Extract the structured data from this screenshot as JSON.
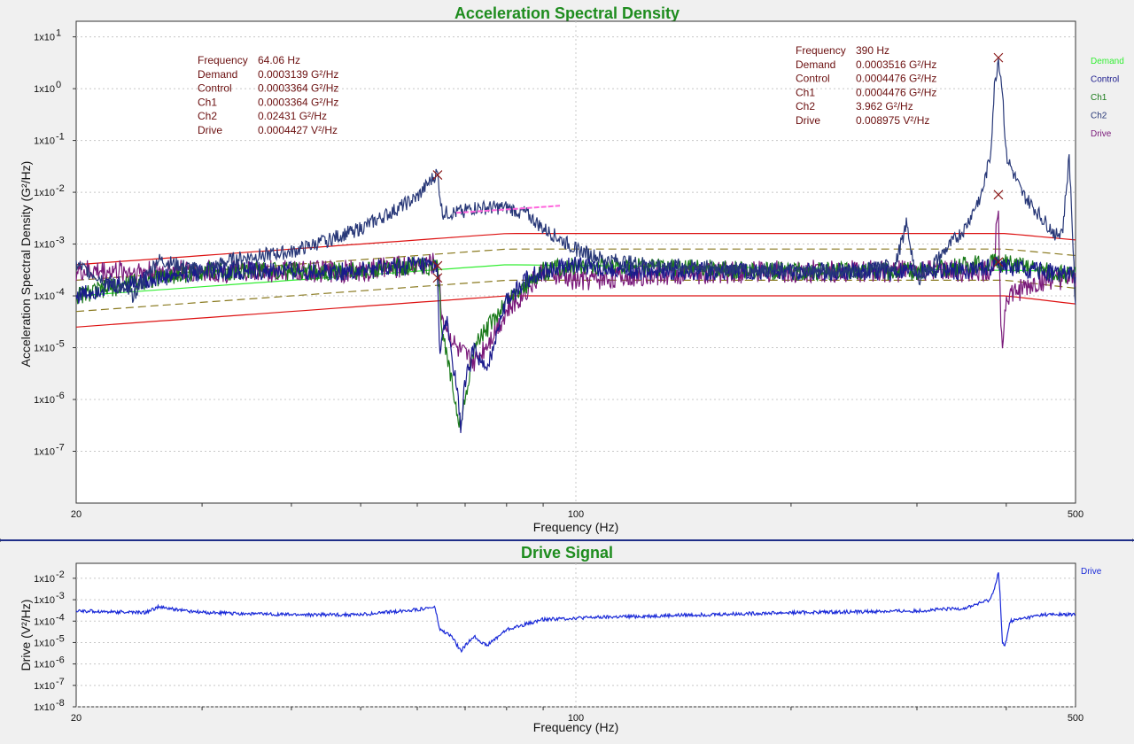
{
  "colors": {
    "demand": "#33ee33",
    "control": "#1a1a8c",
    "ch1": "#1a7a1a",
    "ch2": "#283878",
    "drive": "#7a1a7a",
    "abort": "#dd1111",
    "alarm": "#8a7a20",
    "reference": "#ff66dd",
    "drive_signal": "#1a2ad8",
    "title": "#1e8c1e",
    "cursor_text": "#6b0f0f",
    "separator": "#1f2e88"
  },
  "asd_panel": {
    "title": "Acceleration Spectral Density",
    "xlabel": "Frequency (Hz)",
    "ylabel": "Acceleration Spectral Density (G²/Hz)",
    "x_ticks": [
      "20",
      "100",
      "500"
    ],
    "y_ticks": [
      {
        "exp": 1,
        "label": "1x10"
      },
      {
        "exp": 0,
        "label": "1x10"
      },
      {
        "exp": -1,
        "label": "1x10"
      },
      {
        "exp": -2,
        "label": "1x10"
      },
      {
        "exp": -3,
        "label": "1x10"
      },
      {
        "exp": -4,
        "label": "1x10"
      },
      {
        "exp": -5,
        "label": "1x10"
      },
      {
        "exp": -6,
        "label": "1x10"
      },
      {
        "exp": -7,
        "label": "1x10"
      }
    ],
    "legend": [
      "Demand",
      "Control",
      "Ch1",
      "Ch2",
      "Drive"
    ],
    "cursor1": {
      "rows": [
        {
          "name": "Frequency",
          "value": "64.06 Hz"
        },
        {
          "name": "Demand",
          "value": "0.0003139 G²/Hz"
        },
        {
          "name": "Control",
          "value": "0.0003364 G²/Hz"
        },
        {
          "name": "Ch1",
          "value": "0.0003364 G²/Hz"
        },
        {
          "name": "Ch2",
          "value": "0.02431 G²/Hz"
        },
        {
          "name": "Drive",
          "value": "0.0004427 V²/Hz"
        }
      ]
    },
    "cursor2": {
      "rows": [
        {
          "name": "Frequency",
          "value": "390 Hz"
        },
        {
          "name": "Demand",
          "value": "0.0003516 G²/Hz"
        },
        {
          "name": "Control",
          "value": "0.0004476 G²/Hz"
        },
        {
          "name": "Ch1",
          "value": "0.0004476 G²/Hz"
        },
        {
          "name": "Ch2",
          "value": "3.962 G²/Hz"
        },
        {
          "name": "Drive",
          "value": "0.008975 V²/Hz"
        }
      ]
    }
  },
  "drive_panel": {
    "title": "Drive Signal",
    "xlabel": "Frequency (Hz)",
    "ylabel": "Drive (V²/Hz)",
    "x_ticks": [
      "20",
      "100",
      "500"
    ],
    "y_ticks": [
      {
        "exp": -2,
        "label": "1x10"
      },
      {
        "exp": -3,
        "label": "1x10"
      },
      {
        "exp": -4,
        "label": "1x10"
      },
      {
        "exp": -5,
        "label": "1x10"
      },
      {
        "exp": -6,
        "label": "1x10"
      },
      {
        "exp": -7,
        "label": "1x10"
      },
      {
        "exp": -8,
        "label": "1x10"
      }
    ],
    "legend": [
      "Drive"
    ]
  },
  "chart_data": [
    {
      "type": "line",
      "title": "Acceleration Spectral Density",
      "xlabel": "Frequency (Hz)",
      "ylabel": "Acceleration Spectral Density (G²/Hz)",
      "xscale": "log",
      "yscale": "log",
      "xlim": [
        20,
        500
      ],
      "ylim": [
        1e-08,
        20
      ],
      "grid": true,
      "legend_position": "right",
      "cursors": [
        64.06,
        390
      ],
      "series": [
        {
          "name": "Demand",
          "points": [
            [
              20,
              0.0001
            ],
            [
              80,
              0.0004
            ],
            [
              500,
              0.0003
            ]
          ]
        },
        {
          "name": "Control",
          "points": [
            [
              20,
              0.0001
            ],
            [
              22,
              0.00015
            ],
            [
              25,
              0.0002
            ],
            [
              30,
              0.0003
            ],
            [
              35,
              0.0003
            ],
            [
              40,
              0.0003
            ],
            [
              45,
              0.0003
            ],
            [
              50,
              0.0003
            ],
            [
              55,
              0.00035
            ],
            [
              60,
              0.0004
            ],
            [
              64,
              0.00034
            ],
            [
              64.5,
              1e-05
            ],
            [
              66,
              3e-05
            ],
            [
              68,
              2e-06
            ],
            [
              69,
              3e-07
            ],
            [
              70,
              2e-06
            ],
            [
              72,
              1e-05
            ],
            [
              75,
              3e-06
            ],
            [
              78,
              3e-05
            ],
            [
              80,
              8e-05
            ],
            [
              85,
              0.0002
            ],
            [
              90,
              0.0003
            ],
            [
              100,
              0.0004
            ],
            [
              120,
              0.0003
            ],
            [
              150,
              0.0003
            ],
            [
              200,
              0.0003
            ],
            [
              250,
              0.0003
            ],
            [
              300,
              0.0003
            ],
            [
              350,
              0.0003
            ],
            [
              380,
              0.00035
            ],
            [
              390,
              0.00045
            ],
            [
              400,
              0.00035
            ],
            [
              450,
              0.0003
            ],
            [
              500,
              0.00025
            ]
          ]
        },
        {
          "name": "Ch1",
          "points": [
            [
              20,
              0.0001
            ],
            [
              25,
              0.0002
            ],
            [
              30,
              0.0003
            ],
            [
              40,
              0.0003
            ],
            [
              50,
              0.0003
            ],
            [
              60,
              0.0004
            ],
            [
              64,
              0.00034
            ],
            [
              65,
              2e-05
            ],
            [
              69,
              3e-07
            ],
            [
              72,
              1e-05
            ],
            [
              80,
              8e-05
            ],
            [
              90,
              0.0003
            ],
            [
              100,
              0.0004
            ],
            [
              200,
              0.0003
            ],
            [
              300,
              0.0003
            ],
            [
              390,
              0.00045
            ],
            [
              450,
              0.0003
            ],
            [
              500,
              0.00025
            ]
          ]
        },
        {
          "name": "Ch2",
          "points": [
            [
              20,
              0.0004
            ],
            [
              22,
              0.0002
            ],
            [
              24,
              0.0001
            ],
            [
              26,
              0.0005
            ],
            [
              30,
              0.0003
            ],
            [
              33,
              0.0005
            ],
            [
              36,
              0.0006
            ],
            [
              40,
              0.0007
            ],
            [
              45,
              0.0012
            ],
            [
              50,
              0.002
            ],
            [
              55,
              0.004
            ],
            [
              60,
              0.008
            ],
            [
              62,
              0.014
            ],
            [
              64,
              0.024
            ],
            [
              65,
              0.004
            ],
            [
              68,
              0.004
            ],
            [
              72,
              0.005
            ],
            [
              80,
              0.005
            ],
            [
              85,
              0.004
            ],
            [
              90,
              0.002
            ],
            [
              100,
              0.0008
            ],
            [
              110,
              0.0005
            ],
            [
              130,
              0.0004
            ],
            [
              200,
              0.0003
            ],
            [
              250,
              0.0003
            ],
            [
              280,
              0.0004
            ],
            [
              290,
              0.0025
            ],
            [
              300,
              0.0002
            ],
            [
              310,
              0.0003
            ],
            [
              330,
              0.0008
            ],
            [
              350,
              0.002
            ],
            [
              370,
              0.01
            ],
            [
              380,
              0.05
            ],
            [
              385,
              1
            ],
            [
              390,
              3.962
            ],
            [
              395,
              1
            ],
            [
              400,
              0.05
            ],
            [
              420,
              0.01
            ],
            [
              450,
              0.003
            ],
            [
              470,
              0.0015
            ],
            [
              480,
              0.002
            ],
            [
              490,
              0.05
            ],
            [
              495,
              0.002
            ],
            [
              500,
              5e-05
            ]
          ]
        },
        {
          "name": "Drive",
          "points": [
            [
              20,
              0.0003
            ],
            [
              25,
              0.0003
            ],
            [
              30,
              0.0003
            ],
            [
              40,
              0.0003
            ],
            [
              50,
              0.0003
            ],
            [
              60,
              0.0004
            ],
            [
              64,
              0.00044
            ],
            [
              65,
              4e-05
            ],
            [
              68,
              1e-05
            ],
            [
              72,
              5e-06
            ],
            [
              80,
              5e-05
            ],
            [
              90,
              0.0003
            ],
            [
              100,
              0.0002
            ],
            [
              120,
              0.00025
            ],
            [
              200,
              0.0003
            ],
            [
              300,
              0.0003
            ],
            [
              380,
              0.0003
            ],
            [
              385,
              0.0005
            ],
            [
              390,
              0.008975
            ],
            [
              392,
              0.0001
            ],
            [
              395,
              1e-05
            ],
            [
              400,
              0.0001
            ],
            [
              450,
              0.0002
            ],
            [
              500,
              0.0002
            ]
          ]
        },
        {
          "name": "Abort High",
          "points": [
            [
              20,
              0.0004
            ],
            [
              80,
              0.0016
            ],
            [
              400,
              0.0016
            ],
            [
              500,
              0.0012
            ]
          ]
        },
        {
          "name": "Abort Low",
          "points": [
            [
              20,
              2.5e-05
            ],
            [
              80,
              0.0001
            ],
            [
              400,
              0.0001
            ],
            [
              500,
              7e-05
            ]
          ]
        },
        {
          "name": "Alarm High",
          "points": [
            [
              20,
              0.0002
            ],
            [
              80,
              0.0008
            ],
            [
              400,
              0.0008
            ],
            [
              500,
              0.0006
            ]
          ]
        },
        {
          "name": "Alarm Low",
          "points": [
            [
              20,
              5e-05
            ],
            [
              80,
              0.0002
            ],
            [
              400,
              0.0002
            ],
            [
              500,
              0.00014
            ]
          ]
        },
        {
          "name": "Reference",
          "points": [
            [
              68,
              0.004
            ],
            [
              95,
              0.0055
            ]
          ]
        }
      ]
    },
    {
      "type": "line",
      "title": "Drive Signal",
      "xlabel": "Frequency (Hz)",
      "ylabel": "Drive (V²/Hz)",
      "xscale": "log",
      "yscale": "log",
      "xlim": [
        20,
        500
      ],
      "ylim": [
        1e-08,
        0.05
      ],
      "grid": true,
      "legend_position": "right",
      "series": [
        {
          "name": "Drive",
          "points": [
            [
              20,
              0.0003
            ],
            [
              25,
              0.00025
            ],
            [
              26,
              0.00045
            ],
            [
              30,
              0.00025
            ],
            [
              40,
              0.0002
            ],
            [
              50,
              0.0002
            ],
            [
              60,
              0.00035
            ],
            [
              63.5,
              0.00045
            ],
            [
              64.5,
              4e-05
            ],
            [
              67,
              2e-05
            ],
            [
              69,
              4e-06
            ],
            [
              72,
              2e-05
            ],
            [
              75,
              7e-06
            ],
            [
              80,
              4e-05
            ],
            [
              90,
              0.00012
            ],
            [
              100,
              0.00014
            ],
            [
              150,
              0.0002
            ],
            [
              200,
              0.00025
            ],
            [
              300,
              0.0003
            ],
            [
              350,
              0.0004
            ],
            [
              380,
              0.001
            ],
            [
              387,
              0.006
            ],
            [
              390,
              0.02
            ],
            [
              392,
              0.002
            ],
            [
              395,
              1e-05
            ],
            [
              398,
              6e-06
            ],
            [
              405,
              0.0001
            ],
            [
              450,
              0.0002
            ],
            [
              500,
              0.0002
            ]
          ]
        }
      ]
    }
  ]
}
